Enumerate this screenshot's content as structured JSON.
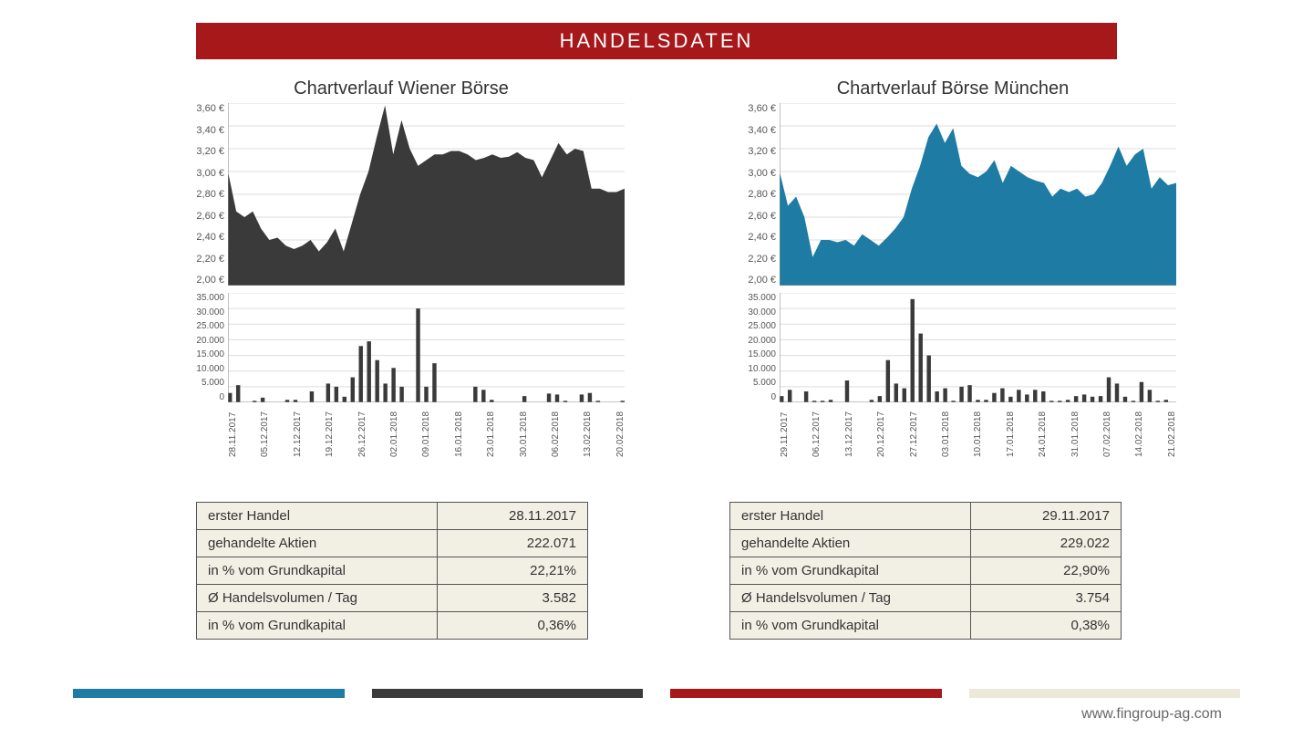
{
  "title": "HANDELSDATEN",
  "website": "www.fingroup-ag.com",
  "footer_colors": [
    "#1e7ba3",
    "#3a3a3a",
    "#a7181b",
    "#ede9da"
  ],
  "area_yticks": [
    "3,60 €",
    "3,40 €",
    "3,20 €",
    "3,00 €",
    "2,80 €",
    "2,60 €",
    "2,40 €",
    "2,20 €",
    "2,00 €"
  ],
  "area_ylim": [
    2.0,
    3.6
  ],
  "vol_yticks": [
    "35.000",
    "30.000",
    "25.000",
    "20.000",
    "15.000",
    "10.000",
    "5.000",
    "0"
  ],
  "vol_ylim": [
    0,
    35000
  ],
  "panels": [
    {
      "title": "Chartverlauf Wiener Börse",
      "area_color": "#3a3a3a",
      "area_values": [
        3.0,
        2.65,
        2.6,
        2.65,
        2.5,
        2.4,
        2.42,
        2.35,
        2.32,
        2.35,
        2.4,
        2.3,
        2.38,
        2.5,
        2.3,
        2.55,
        2.8,
        3.0,
        3.3,
        3.58,
        3.15,
        3.45,
        3.2,
        3.05,
        3.1,
        3.15,
        3.15,
        3.18,
        3.18,
        3.15,
        3.1,
        3.12,
        3.15,
        3.12,
        3.13,
        3.17,
        3.12,
        3.1,
        2.95,
        3.1,
        3.25,
        3.15,
        3.2,
        3.18,
        2.85,
        2.85,
        2.82,
        2.82,
        2.85
      ],
      "vol_color": "#3a3a3a",
      "vol_x_labels": [
        "28.11.2017",
        "05.12.2017",
        "12.12.2017",
        "19.12.2017",
        "26.12.2017",
        "02.01.2018",
        "09.01.2018",
        "16.01.2018",
        "23.01.2018",
        "30.01.2018",
        "06.02.2018",
        "13.02.2018",
        "20.02.2018"
      ],
      "vol_values": [
        3000,
        5500,
        0,
        500,
        1500,
        0,
        0,
        800,
        800,
        0,
        3500,
        0,
        6000,
        5000,
        1800,
        8000,
        18000,
        19500,
        13500,
        6000,
        11000,
        5000,
        0,
        30000,
        5000,
        12500,
        0,
        0,
        0,
        0,
        5000,
        4000,
        800,
        0,
        0,
        0,
        2000,
        0,
        0,
        2800,
        2500,
        500,
        0,
        2500,
        3000,
        500,
        0,
        0,
        500
      ],
      "table": [
        [
          "erster Handel",
          "28.11.2017"
        ],
        [
          "gehandelte Aktien",
          "222.071"
        ],
        [
          "in % vom Grundkapital",
          "22,21%"
        ],
        [
          "Ø Handelsvolumen / Tag",
          "3.582"
        ],
        [
          "in % vom Grundkapital",
          "0,36%"
        ]
      ]
    },
    {
      "title": "Chartverlauf Börse München",
      "area_color": "#1e7ba3",
      "area_values": [
        3.0,
        2.7,
        2.78,
        2.6,
        2.25,
        2.4,
        2.4,
        2.38,
        2.4,
        2.35,
        2.45,
        2.4,
        2.35,
        2.42,
        2.5,
        2.6,
        2.85,
        3.05,
        3.3,
        3.42,
        3.25,
        3.38,
        3.05,
        2.98,
        2.95,
        3.0,
        3.1,
        2.9,
        3.05,
        3.0,
        2.95,
        2.92,
        2.9,
        2.78,
        2.85,
        2.82,
        2.85,
        2.78,
        2.8,
        2.9,
        3.05,
        3.22,
        3.05,
        3.15,
        3.2,
        2.85,
        2.95,
        2.88,
        2.9
      ],
      "vol_color": "#3a3a3a",
      "vol_x_labels": [
        "29.11.2017",
        "06.12.2017",
        "13.12.2017",
        "20.12.2017",
        "27.12.2017",
        "03.01.2018",
        "10.01.2018",
        "17.01.2018",
        "24.01.2018",
        "31.01.2018",
        "07.02.2018",
        "14.02.2018",
        "21.02.2018"
      ],
      "vol_values": [
        2000,
        4000,
        0,
        3500,
        500,
        500,
        800,
        0,
        7000,
        0,
        0,
        800,
        2000,
        13500,
        6000,
        4500,
        33000,
        22000,
        15000,
        3500,
        4500,
        500,
        5000,
        5500,
        800,
        800,
        3000,
        4500,
        1800,
        4000,
        2500,
        4000,
        3500,
        500,
        500,
        800,
        2000,
        2500,
        1800,
        2000,
        8000,
        6000,
        1800,
        500,
        6500,
        4000,
        500,
        800,
        0
      ],
      "table": [
        [
          "erster Handel",
          "29.11.2017"
        ],
        [
          "gehandelte Aktien",
          "229.022"
        ],
        [
          "in % vom Grundkapital",
          "22,90%"
        ],
        [
          "Ø Handelsvolumen / Tag",
          "3.754"
        ],
        [
          "in % vom Grundkapital",
          "0,38%"
        ]
      ]
    }
  ]
}
